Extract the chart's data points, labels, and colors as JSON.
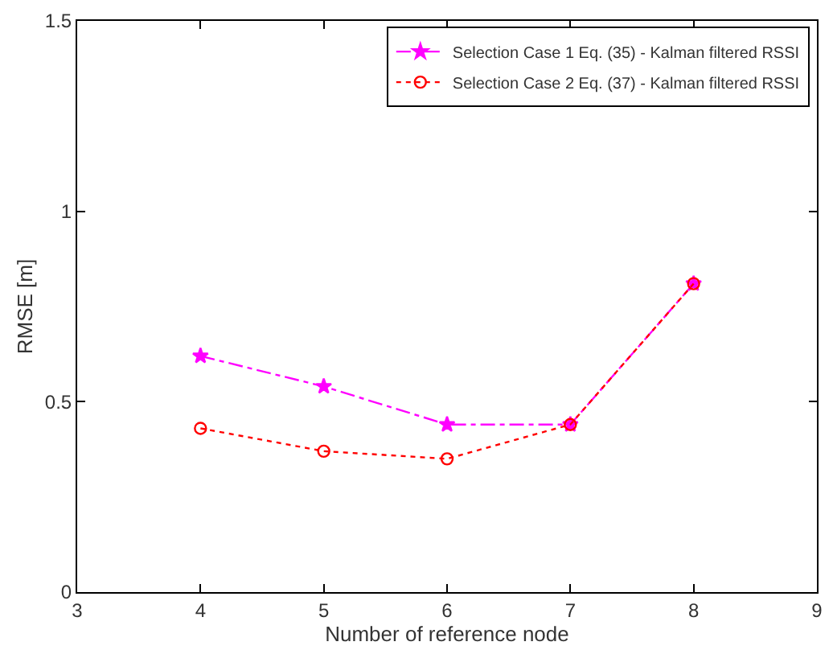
{
  "chart_data": {
    "type": "line",
    "xlabel": "Number of reference node",
    "ylabel": "RMSE [m]",
    "x": [
      4,
      5,
      6,
      7,
      8
    ],
    "series": [
      {
        "name": "Selection Case 1 Eq. (35) - Kalman filtered RSSI",
        "color": "#ff00ff",
        "values": [
          0.62,
          0.54,
          0.44,
          0.44,
          0.81
        ],
        "marker": "star",
        "line_style": "dashdot"
      },
      {
        "name": "Selection Case 2 Eq. (37) - Kalman filtered RSSI",
        "color": "#ff0000",
        "values": [
          0.43,
          0.37,
          0.35,
          0.44,
          0.81
        ],
        "marker": "circle",
        "line_style": "dotted"
      }
    ],
    "xlim": [
      3,
      9
    ],
    "xticks": [
      3,
      4,
      5,
      6,
      7,
      8,
      9
    ],
    "ylim": [
      0,
      1.5
    ],
    "yticks": [
      0,
      0.5,
      1,
      1.5
    ],
    "legend": "top right"
  }
}
